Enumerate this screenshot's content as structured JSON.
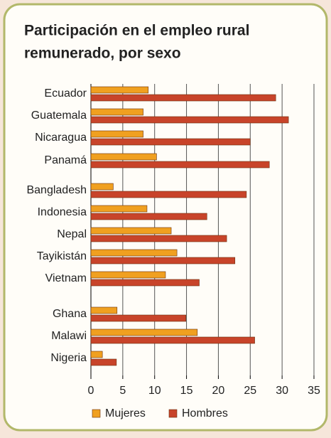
{
  "chart_data": {
    "type": "hbar",
    "title": [
      "Participación en el empleo rural",
      "remunerado, por sexo"
    ],
    "categories": [
      "Ecuador",
      "Guatemala",
      "Nicaragua",
      "Panamá",
      "Bangladesh",
      "Indonesia",
      "Nepal",
      "Tayikistán",
      "Vietnam",
      "Ghana",
      "Malawi",
      "Nigeria"
    ],
    "series": [
      {
        "name": "Mujeres",
        "color": "#f0a020",
        "values": [
          9.0,
          8.2,
          8.2,
          10.3,
          3.5,
          8.8,
          12.6,
          13.5,
          11.7,
          4.1,
          16.7,
          1.8
        ]
      },
      {
        "name": "Hombres",
        "color": "#c8442a",
        "values": [
          29.0,
          31.0,
          25.0,
          28.0,
          24.4,
          18.2,
          21.3,
          22.6,
          17.0,
          14.9,
          25.7,
          4.0
        ]
      }
    ],
    "xlim": [
      0,
      35
    ],
    "xticks": [
      0,
      5,
      10,
      15,
      20,
      25,
      30,
      35
    ],
    "grid": true,
    "legend": "bottom"
  }
}
